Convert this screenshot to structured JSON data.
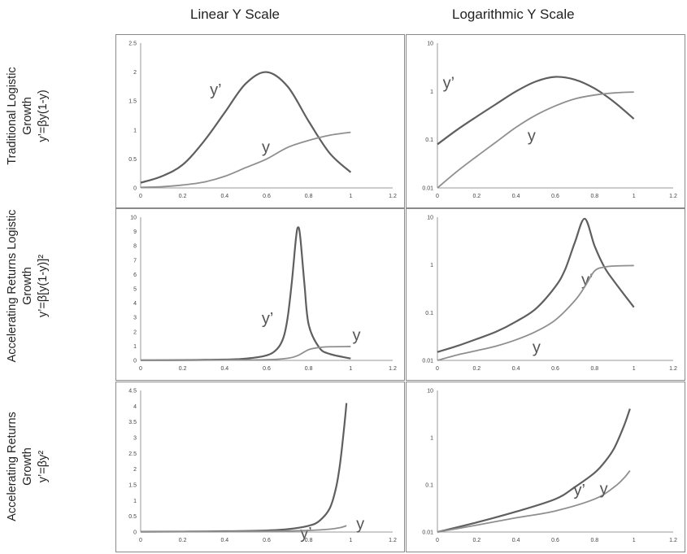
{
  "column_titles": [
    "Linear Y Scale",
    "Logarithmic Y Scale"
  ],
  "row_labels": [
    [
      "Traditional Logistic",
      "Growth",
      "y’=βy(1-y)"
    ],
    [
      "Accelerating Returns Logistic",
      "Growth",
      "y’=β[y(1-y)]²"
    ],
    [
      "Accelerating Returns",
      "Growth",
      "y’=βy²"
    ]
  ],
  "chart_data": [
    {
      "type": "line",
      "title": "",
      "row": 0,
      "col": 0,
      "yscale": "linear",
      "xlim": [
        0,
        1.2
      ],
      "ylim": [
        0,
        2.5
      ],
      "x_ticks": [
        "0",
        "0.2",
        "0.4",
        "0.6",
        "0.8",
        "1",
        "1.2"
      ],
      "y_ticks": [
        "0",
        "0.5",
        "1",
        "1.5",
        "2",
        "2.5"
      ],
      "series": [
        {
          "name": "y’",
          "x": [
            0,
            0.1,
            0.2,
            0.3,
            0.4,
            0.5,
            0.6,
            0.7,
            0.8,
            0.9,
            1.0
          ],
          "values": [
            0.09,
            0.2,
            0.4,
            0.8,
            1.3,
            1.8,
            2.0,
            1.75,
            1.15,
            0.6,
            0.27
          ]
        },
        {
          "name": "y",
          "x": [
            0,
            0.1,
            0.2,
            0.3,
            0.4,
            0.5,
            0.6,
            0.7,
            0.8,
            0.9,
            1.0
          ],
          "values": [
            0.01,
            0.02,
            0.05,
            0.1,
            0.2,
            0.35,
            0.5,
            0.7,
            0.82,
            0.91,
            0.96
          ]
        }
      ]
    },
    {
      "type": "line",
      "title": "",
      "row": 0,
      "col": 1,
      "yscale": "log",
      "xlim": [
        0,
        1.2
      ],
      "ylim": [
        0.01,
        10
      ],
      "x_ticks": [
        "0",
        "0.2",
        "0.4",
        "0.6",
        "0.8",
        "1",
        "1.2"
      ],
      "y_ticks": [
        "0.01",
        "0.1",
        "1",
        "10"
      ],
      "series": [
        {
          "name": "y’",
          "x": [
            0,
            0.1,
            0.2,
            0.3,
            0.4,
            0.5,
            0.6,
            0.7,
            0.8,
            0.9,
            1.0
          ],
          "values": [
            0.08,
            0.16,
            0.3,
            0.55,
            1.0,
            1.6,
            2.0,
            1.75,
            1.15,
            0.6,
            0.27
          ]
        },
        {
          "name": "y",
          "x": [
            0,
            0.1,
            0.2,
            0.3,
            0.4,
            0.5,
            0.6,
            0.7,
            0.8,
            0.9,
            1.0
          ],
          "values": [
            0.01,
            0.022,
            0.045,
            0.09,
            0.18,
            0.32,
            0.5,
            0.7,
            0.84,
            0.93,
            0.97
          ]
        }
      ]
    },
    {
      "type": "line",
      "title": "",
      "row": 1,
      "col": 0,
      "yscale": "linear",
      "xlim": [
        0,
        1.2
      ],
      "ylim": [
        0,
        10
      ],
      "x_ticks": [
        "0",
        "0.2",
        "0.4",
        "0.6",
        "0.8",
        "1",
        "1.2"
      ],
      "y_ticks": [
        "0",
        "1",
        "2",
        "3",
        "4",
        "5",
        "6",
        "7",
        "8",
        "9",
        "10"
      ],
      "series": [
        {
          "name": "y’",
          "x": [
            0,
            0.2,
            0.4,
            0.5,
            0.6,
            0.65,
            0.68,
            0.7,
            0.72,
            0.74,
            0.75,
            0.76,
            0.78,
            0.8,
            0.85,
            0.9,
            1.0
          ],
          "values": [
            0.01,
            0.02,
            0.06,
            0.12,
            0.35,
            0.8,
            1.6,
            3.0,
            5.5,
            8.6,
            9.3,
            8.6,
            5.3,
            2.5,
            0.9,
            0.45,
            0.13
          ]
        },
        {
          "name": "y",
          "x": [
            0,
            0.2,
            0.4,
            0.6,
            0.7,
            0.75,
            0.8,
            0.85,
            0.9,
            1.0
          ],
          "values": [
            0.01,
            0.01,
            0.02,
            0.05,
            0.15,
            0.35,
            0.75,
            0.9,
            0.95,
            0.97
          ]
        }
      ]
    },
    {
      "type": "line",
      "title": "",
      "row": 1,
      "col": 1,
      "yscale": "log",
      "xlim": [
        0,
        1.2
      ],
      "ylim": [
        0.01,
        10
      ],
      "x_ticks": [
        "0",
        "0.2",
        "0.4",
        "0.6",
        "0.8",
        "1",
        "1.2"
      ],
      "y_ticks": [
        "0.01",
        "0.1",
        "1",
        "10"
      ],
      "series": [
        {
          "name": "y’",
          "x": [
            0,
            0.1,
            0.2,
            0.3,
            0.4,
            0.5,
            0.6,
            0.65,
            0.7,
            0.75,
            0.8,
            0.85,
            0.9,
            1.0
          ],
          "values": [
            0.015,
            0.02,
            0.028,
            0.04,
            0.065,
            0.12,
            0.35,
            0.8,
            3.0,
            9.3,
            2.5,
            0.9,
            0.45,
            0.13
          ]
        },
        {
          "name": "y",
          "x": [
            0,
            0.1,
            0.2,
            0.3,
            0.4,
            0.5,
            0.6,
            0.7,
            0.75,
            0.8,
            0.85,
            0.9,
            1.0
          ],
          "values": [
            0.01,
            0.013,
            0.016,
            0.02,
            0.027,
            0.04,
            0.07,
            0.18,
            0.35,
            0.75,
            0.9,
            0.95,
            0.97
          ]
        }
      ]
    },
    {
      "type": "line",
      "title": "",
      "row": 2,
      "col": 0,
      "yscale": "linear",
      "xlim": [
        0,
        1.2
      ],
      "ylim": [
        0,
        4.5
      ],
      "x_ticks": [
        "0",
        "0.2",
        "0.4",
        "0.6",
        "0.8",
        "1",
        "1.2"
      ],
      "y_ticks": [
        "0",
        "0.5",
        "1",
        "1.5",
        "2",
        "2.5",
        "3",
        "3.5",
        "4",
        "4.5"
      ],
      "series": [
        {
          "name": "y’",
          "x": [
            0,
            0.2,
            0.4,
            0.6,
            0.7,
            0.8,
            0.85,
            0.9,
            0.93,
            0.95,
            0.97,
            0.98
          ],
          "values": [
            0.01,
            0.015,
            0.025,
            0.05,
            0.09,
            0.2,
            0.35,
            0.75,
            1.4,
            2.2,
            3.4,
            4.1
          ]
        },
        {
          "name": "y",
          "x": [
            0,
            0.2,
            0.4,
            0.6,
            0.8,
            0.9,
            0.95,
            0.98
          ],
          "values": [
            0.01,
            0.012,
            0.016,
            0.025,
            0.05,
            0.09,
            0.14,
            0.2
          ]
        }
      ]
    },
    {
      "type": "line",
      "title": "",
      "row": 2,
      "col": 1,
      "yscale": "log",
      "xlim": [
        0,
        1.2
      ],
      "ylim": [
        0.01,
        10
      ],
      "x_ticks": [
        "0",
        "0.2",
        "0.4",
        "0.6",
        "0.8",
        "1",
        "1.2"
      ],
      "y_ticks": [
        "0.01",
        "0.1",
        "1",
        "10"
      ],
      "series": [
        {
          "name": "y’",
          "x": [
            0,
            0.2,
            0.4,
            0.6,
            0.7,
            0.8,
            0.85,
            0.9,
            0.95,
            0.98
          ],
          "values": [
            0.01,
            0.016,
            0.027,
            0.05,
            0.09,
            0.18,
            0.3,
            0.6,
            1.8,
            4.1
          ]
        },
        {
          "name": "y",
          "x": [
            0,
            0.2,
            0.4,
            0.6,
            0.8,
            0.9,
            0.95,
            0.98
          ],
          "values": [
            0.01,
            0.014,
            0.02,
            0.028,
            0.05,
            0.09,
            0.14,
            0.2
          ]
        }
      ]
    }
  ],
  "colors": {
    "y_prime_line": "#5f5f5f",
    "y_line": "#8f8f8f",
    "panel_border": "#8a8a8a"
  }
}
